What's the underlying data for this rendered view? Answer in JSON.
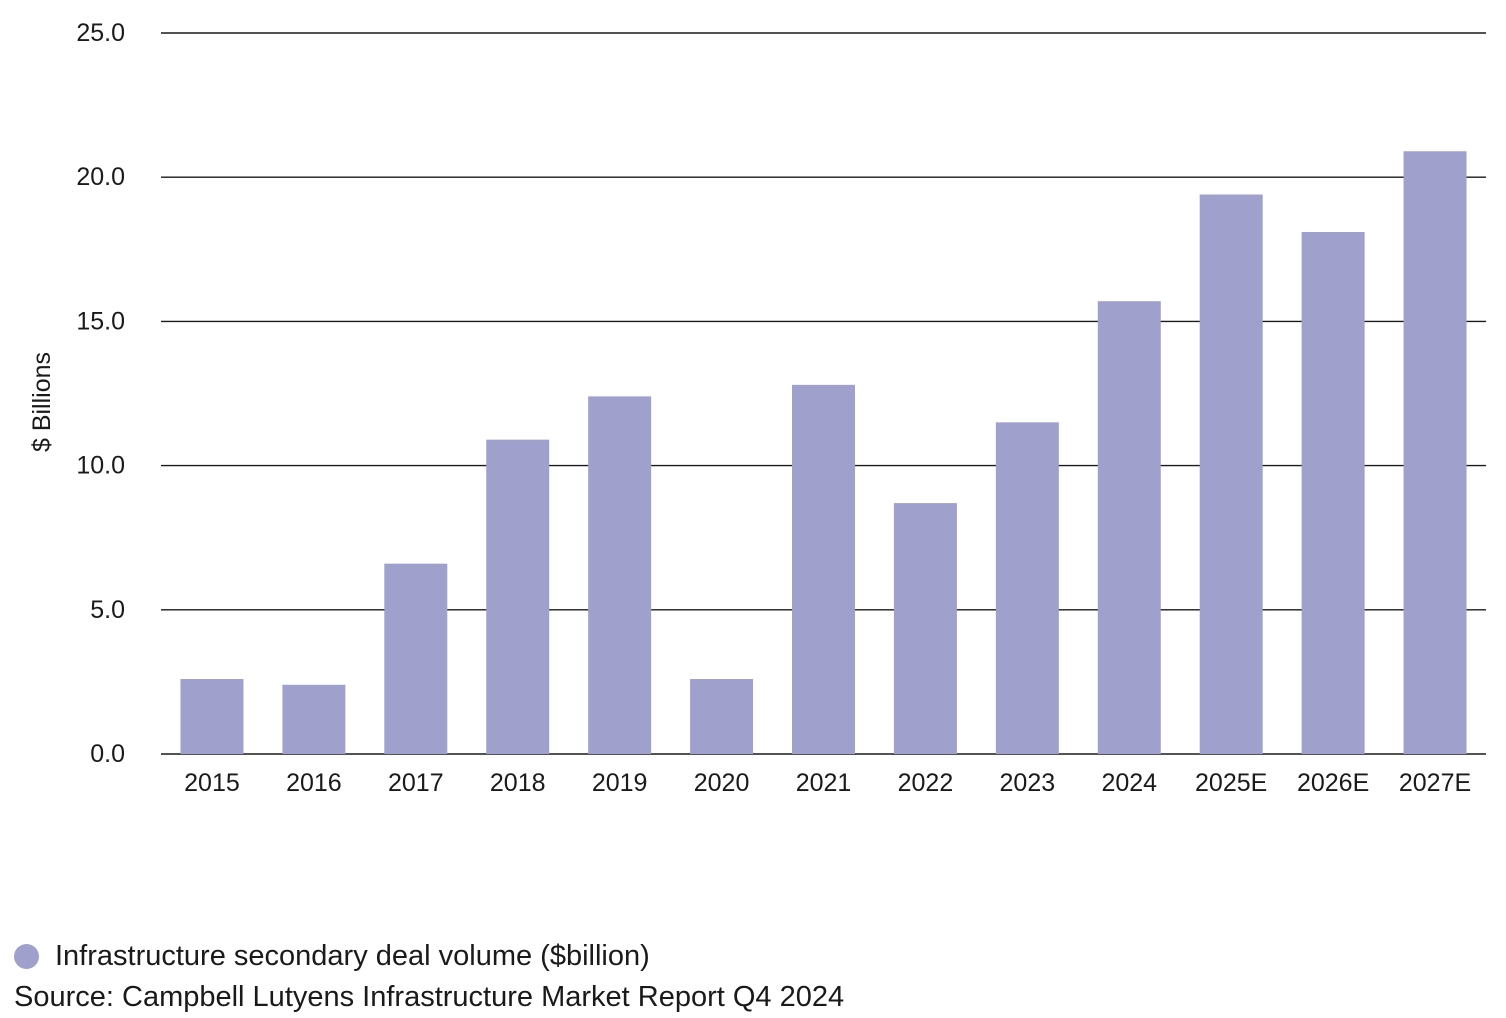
{
  "chart_data": {
    "type": "bar",
    "categories": [
      "2015",
      "2016",
      "2017",
      "2018",
      "2019",
      "2020",
      "2021",
      "2022",
      "2023",
      "2024",
      "2025E",
      "2026E",
      "2027E"
    ],
    "series": [
      {
        "name": "Infrastructure secondary deal volume ($billion)",
        "values": [
          2.6,
          2.4,
          6.6,
          10.9,
          12.4,
          2.6,
          12.8,
          8.7,
          11.5,
          15.7,
          19.4,
          18.1,
          20.9
        ],
        "color": "#a0a0cd"
      }
    ],
    "title": "",
    "xlabel": "",
    "ylabel": "$ Billions",
    "ylim": [
      0,
      25
    ],
    "yticks": [
      "0.0",
      "5.0",
      "10.0",
      "15.0",
      "20.0",
      "25.0"
    ],
    "grid": true,
    "legend_position": "bottom-left"
  },
  "legend": {
    "label": "Infrastructure secondary deal volume ($billion)",
    "color": "#a0a0cd"
  },
  "source": "Source: Campbell Lutyens Infrastructure Market Report Q4 2024"
}
